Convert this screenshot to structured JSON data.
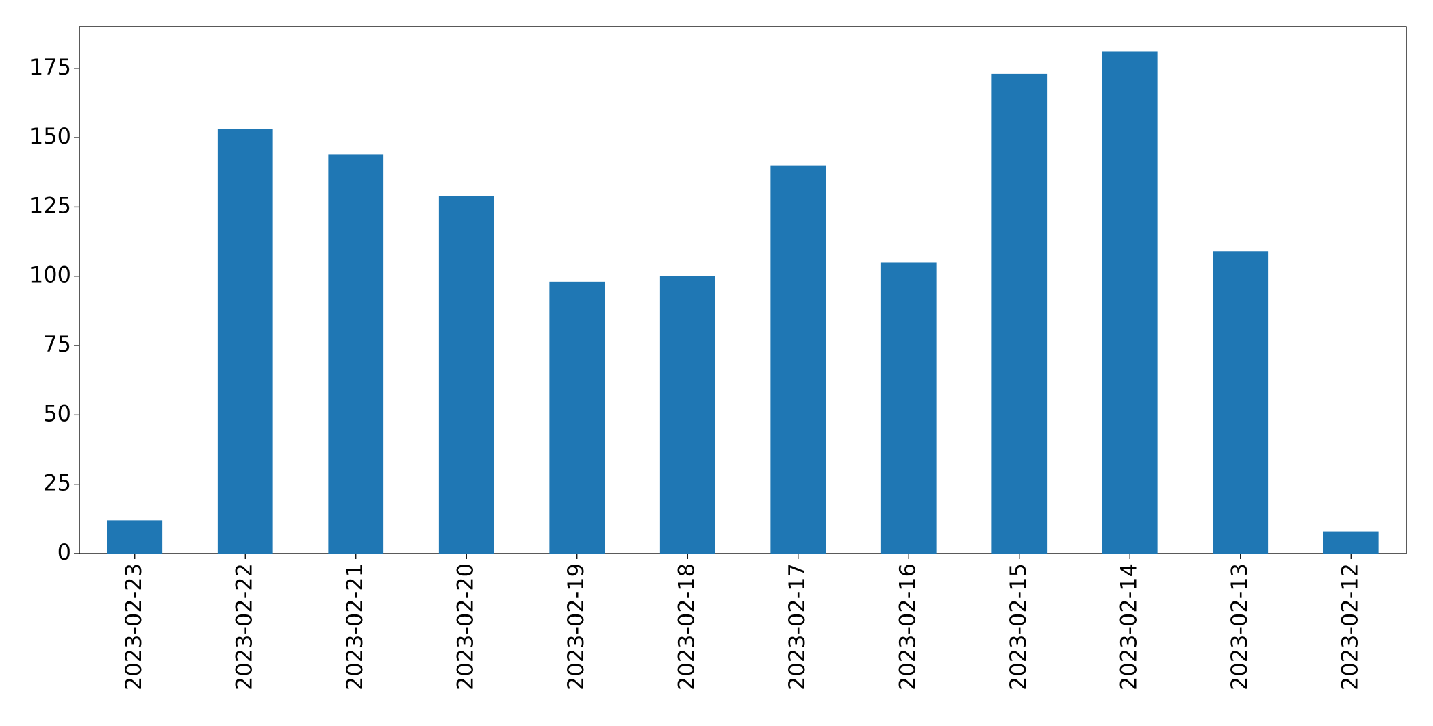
{
  "chart_data": {
    "type": "bar",
    "categories": [
      "2023-02-23",
      "2023-02-22",
      "2023-02-21",
      "2023-02-20",
      "2023-02-19",
      "2023-02-18",
      "2023-02-17",
      "2023-02-16",
      "2023-02-15",
      "2023-02-14",
      "2023-02-13",
      "2023-02-12"
    ],
    "values": [
      12,
      153,
      144,
      129,
      98,
      100,
      140,
      105,
      173,
      181,
      109,
      8
    ],
    "color": "#1f77b4",
    "ylim": [
      0,
      190
    ],
    "yticks": [
      0,
      25,
      50,
      75,
      100,
      125,
      150,
      175
    ],
    "grid": false
  }
}
